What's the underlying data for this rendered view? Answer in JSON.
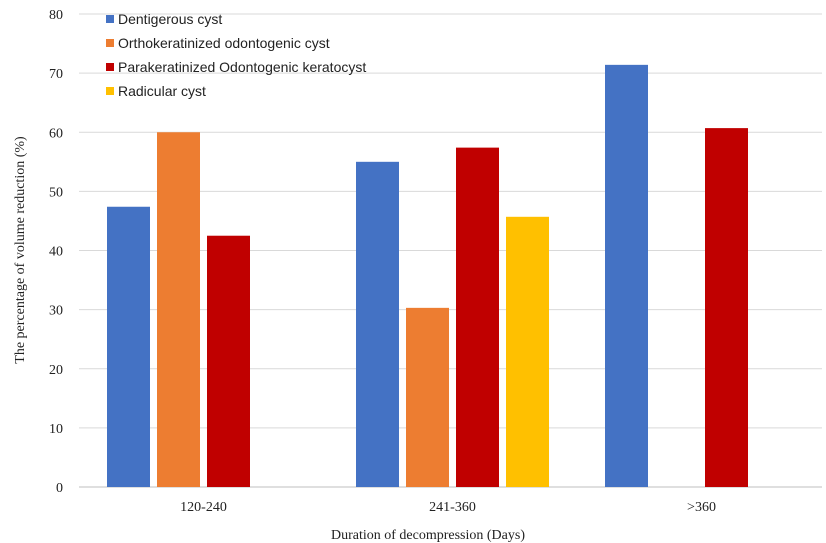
{
  "chart_data": {
    "type": "bar",
    "xlabel": "Duration of decompression (Days)",
    "ylabel": "The percentage of volume reduction (%)",
    "ylim": [
      0,
      80
    ],
    "yticks": [
      0,
      10,
      20,
      30,
      40,
      50,
      60,
      70,
      80
    ],
    "grid": true,
    "legend_position": "top-left",
    "categories": [
      "120-240",
      "241-360",
      ">360"
    ],
    "series": [
      {
        "name": "Dentigerous cyst",
        "color": "#4472C4",
        "values": [
          47.4,
          55.0,
          71.4
        ]
      },
      {
        "name": "Orthokeratinized odontogenic cyst",
        "color": "#ED7D31",
        "values": [
          60.0,
          30.3,
          null
        ]
      },
      {
        "name": "Parakeratinized Odontogenic keratocyst",
        "color": "#C00000",
        "values": [
          42.5,
          57.4,
          60.7
        ]
      },
      {
        "name": "Radicular cyst",
        "color": "#FFC000",
        "values": [
          null,
          45.7,
          null
        ]
      }
    ]
  }
}
